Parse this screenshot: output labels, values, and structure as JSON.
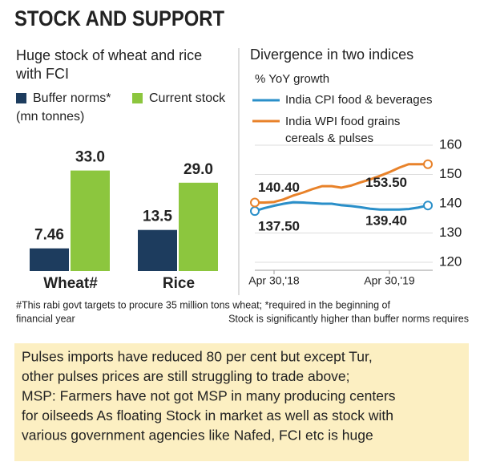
{
  "header": {
    "title": "STOCK AND SUPPORT"
  },
  "chart_data": [
    {
      "type": "bar",
      "title": "Huge stock of wheat and rice with FCI",
      "unit_label": "(mn tonnes)",
      "categories": [
        "Wheat#",
        "Rice"
      ],
      "series": [
        {
          "name": "Buffer norms*",
          "color": "#1d3c5e",
          "values": [
            7.46,
            13.5
          ]
        },
        {
          "name": "Current stock",
          "color": "#8cc63e",
          "values": [
            33,
            29
          ],
          "value_labels": [
            "33.0",
            "29.0"
          ]
        }
      ],
      "ylim": [
        0,
        40
      ]
    },
    {
      "type": "line",
      "title": "Divergence in two indices",
      "y_label": "% YoY growth",
      "categories": [
        null,
        null,
        "Apr 30,'18",
        null,
        null,
        null,
        null,
        null,
        null,
        null,
        null,
        null,
        null,
        null,
        "Apr 30,'19",
        null,
        null,
        null,
        null
      ],
      "series": [
        {
          "name": "India CPI food & beverages",
          "color": "#2a8fc9",
          "values": [
            137.5,
            138.5,
            139.3,
            140,
            140.5,
            140.4,
            140.2,
            140,
            140,
            139.5,
            139.2,
            138.8,
            138.3,
            138,
            138,
            138,
            138.2,
            138.7,
            139.4
          ],
          "value_labels": [
            "137.50",
            null,
            null,
            null,
            null,
            null,
            null,
            null,
            null,
            null,
            null,
            null,
            null,
            null,
            null,
            null,
            null,
            null,
            "139.40"
          ]
        },
        {
          "name": "India WPI food grains cereals & pulses",
          "color": "#e8822a",
          "values": [
            140.4,
            140.4,
            140.6,
            141.5,
            142.8,
            143.8,
            145,
            146,
            146,
            145.5,
            146.2,
            147.3,
            148.3,
            149.5,
            150.8,
            152.3,
            153.5,
            153.5,
            153.5
          ],
          "value_labels": [
            "140.40",
            null,
            null,
            null,
            null,
            null,
            null,
            null,
            null,
            null,
            null,
            null,
            null,
            null,
            null,
            null,
            null,
            null,
            "153.50"
          ]
        }
      ],
      "ylim": [
        120,
        160
      ],
      "yticks": [
        120,
        130,
        140,
        150,
        160
      ],
      "grid": true
    }
  ],
  "footnotes": [
    "#This rabi govt targets to procure 35 million tons wheat; *required in the beginning of",
    "financial year",
    "Stock is significantly higher than buffer norms requires"
  ],
  "note": {
    "lines": [
      "Pulses imports have reduced 80 per cent but except Tur,",
      "other pulses prices are still struggling to trade above;",
      "MSP: Farmers have not got MSP in many producing centers",
      "for oilseeds As floating Stock in market as well as stock with",
      "various government agencies like Nafed, FCI etc is huge"
    ]
  }
}
